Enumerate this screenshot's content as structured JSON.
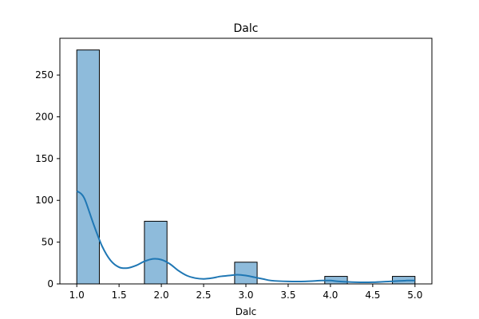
{
  "chart_data": {
    "type": "bar",
    "title": "Dalc",
    "xlabel": "Dalc",
    "ylabel": "",
    "xlim": [
      0.8,
      5.2
    ],
    "ylim": [
      0,
      294
    ],
    "xticks": [
      1.0,
      1.5,
      2.0,
      2.5,
      3.0,
      3.5,
      4.0,
      4.5,
      5.0
    ],
    "xtick_labels": [
      "1.0",
      "1.5",
      "2.0",
      "2.5",
      "3.0",
      "3.5",
      "4.0",
      "4.5",
      "5.0"
    ],
    "yticks": [
      0,
      50,
      100,
      150,
      200,
      250
    ],
    "ytick_labels": [
      "0",
      "50",
      "100",
      "150",
      "200",
      "250"
    ],
    "grid": false,
    "bins": [
      {
        "start": 1.0,
        "end": 1.267,
        "count": 280
      },
      {
        "start": 1.8,
        "end": 2.067,
        "count": 75
      },
      {
        "start": 2.867,
        "end": 3.133,
        "count": 26
      },
      {
        "start": 3.933,
        "end": 4.2,
        "count": 9
      },
      {
        "start": 4.733,
        "end": 5.0,
        "count": 9
      }
    ],
    "kde": {
      "x": [
        1.0,
        1.05,
        1.1,
        1.2,
        1.3,
        1.4,
        1.5,
        1.6,
        1.7,
        1.8,
        1.9,
        2.0,
        2.1,
        2.2,
        2.3,
        2.4,
        2.5,
        2.6,
        2.7,
        2.8,
        2.9,
        3.0,
        3.1,
        3.2,
        3.3,
        3.5,
        3.7,
        3.9,
        4.0,
        4.1,
        4.3,
        4.5,
        4.7,
        4.9,
        5.0
      ],
      "y": [
        111,
        108,
        100,
        71,
        45,
        28,
        20,
        19,
        22,
        27,
        30,
        29,
        24,
        16,
        10,
        7,
        6,
        7,
        9,
        10,
        11,
        10,
        8,
        6,
        4,
        3,
        3,
        4,
        4,
        3,
        2,
        2,
        3,
        4,
        4
      ]
    },
    "colors": {
      "bar_fill": "#8ebbdb",
      "bar_edge": "#000000",
      "kde_line": "#1f77b4"
    }
  }
}
